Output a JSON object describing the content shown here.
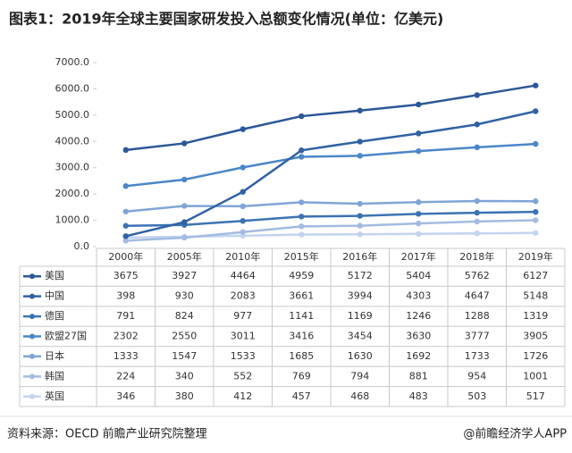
{
  "chart_data": {
    "type": "line",
    "title": "图表1：2019年全球主要国家研发投入总额变化情况(单位：亿美元)",
    "categories": [
      "2000年",
      "2005年",
      "2010年",
      "2015年",
      "2016年",
      "2017年",
      "2018年",
      "2019年"
    ],
    "series": [
      {
        "name": "美国",
        "color": "#2b5797",
        "values": [
          3675,
          3927,
          4464,
          4959,
          5172,
          5404,
          5762,
          6127
        ]
      },
      {
        "name": "中国",
        "color": "#2f62a3",
        "values": [
          398,
          930,
          2083,
          3661,
          3994,
          4303,
          4647,
          5148
        ]
      },
      {
        "name": "德国",
        "color": "#3b73b3",
        "values": [
          791,
          824,
          977,
          1141,
          1169,
          1246,
          1288,
          1319
        ]
      },
      {
        "name": "欧盟27国",
        "color": "#4a87c8",
        "values": [
          2302,
          2550,
          3011,
          3416,
          3454,
          3630,
          3777,
          3905
        ]
      },
      {
        "name": "日本",
        "color": "#7fa5d7",
        "values": [
          1333,
          1547,
          1533,
          1685,
          1630,
          1692,
          1733,
          1726
        ]
      },
      {
        "name": "韩国",
        "color": "#a3bbe2",
        "values": [
          224,
          340,
          552,
          769,
          794,
          881,
          954,
          1001
        ]
      },
      {
        "name": "英国",
        "color": "#c3d4ef",
        "values": [
          346,
          380,
          412,
          457,
          468,
          483,
          503,
          517
        ]
      }
    ],
    "ylim": [
      0,
      7000
    ],
    "yticks": [
      {
        "value": 0,
        "label": "0.0"
      },
      {
        "value": 1000,
        "label": "1000.0"
      },
      {
        "value": 2000,
        "label": "2000.0"
      },
      {
        "value": 3000,
        "label": "3000.0"
      },
      {
        "value": 4000,
        "label": "4000.0"
      },
      {
        "value": 5000,
        "label": "5000.0"
      },
      {
        "value": 6000,
        "label": "6000.0"
      },
      {
        "value": 7000,
        "label": "7000.0"
      }
    ],
    "grid": false,
    "source": "资料来源：OECD 前瞻产业研究院整理",
    "credit": "@前瞻经济学人APP"
  }
}
